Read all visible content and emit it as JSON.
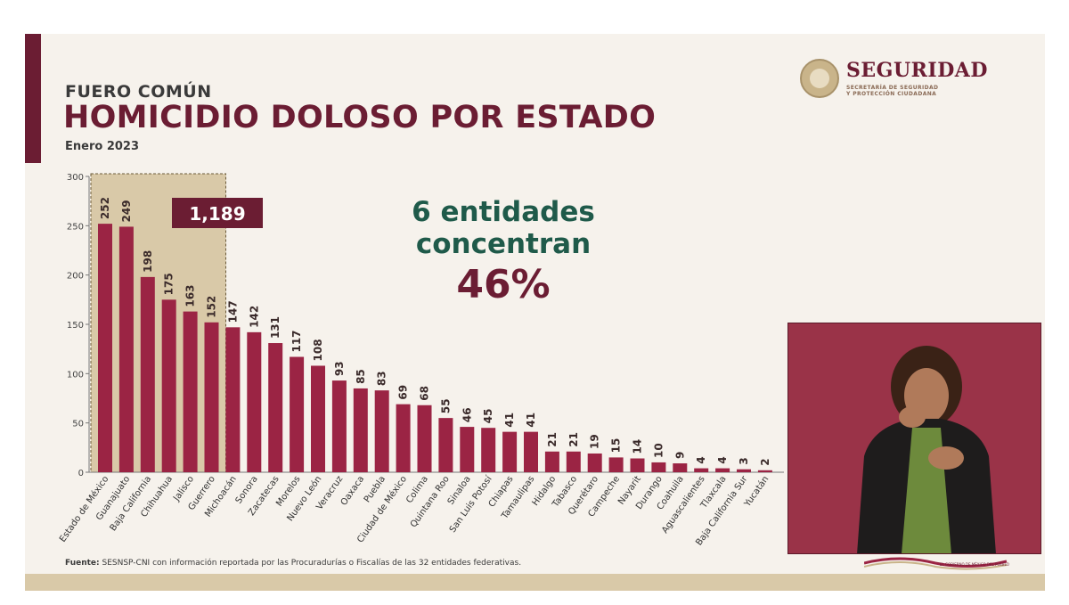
{
  "header": {
    "kicker": "FUERO COMÚN",
    "title": "HOMICIDIO DOLOSO POR ESTADO",
    "date": "Enero 2023"
  },
  "logo": {
    "word": "SEGURIDAD",
    "sub_line1": "SECRETARÍA DE SEGURIDAD",
    "sub_line2": "Y PROTECCIÓN CIUDADANA"
  },
  "message": {
    "line1": "6 entidades",
    "line2": "concentran",
    "percent": "46%"
  },
  "highlight": {
    "total": "1,189",
    "count": 6
  },
  "source": {
    "label": "Fuente:",
    "text": "SESNSP-CNI con información reportada por las Procuradurías o Fiscalías de las 32 entidades federativas."
  },
  "inset_footer": "EL GOBIERNO DE MÉXICO DEL PUEBLO",
  "colors": {
    "bar": "#9b2444",
    "bar_highlight": "#9b2444",
    "highlight_fill": "#d9c9a8",
    "accent": "#6b1d33",
    "message_green": "#1f5a4a"
  },
  "chart_data": {
    "type": "bar",
    "categories": [
      "Estado de México",
      "Guanajuato",
      "Baja California",
      "Chihuahua",
      "Jalisco",
      "Guerrero",
      "Michoacán",
      "Sonora",
      "Zacatecas",
      "Morelos",
      "Nuevo León",
      "Veracruz",
      "Oaxaca",
      "Puebla",
      "Ciudad de México",
      "Colima",
      "Quintana Roo",
      "Sinaloa",
      "San Luis Potosí",
      "Chiapas",
      "Tamaulipas",
      "Hidalgo",
      "Tabasco",
      "Querétaro",
      "Campeche",
      "Nayarit",
      "Durango",
      "Coahuila",
      "Aguascalientes",
      "Tlaxcala",
      "Baja California Sur",
      "Yucatán"
    ],
    "values": [
      252,
      249,
      198,
      175,
      163,
      152,
      147,
      142,
      131,
      117,
      108,
      93,
      85,
      83,
      69,
      68,
      55,
      46,
      45,
      41,
      41,
      21,
      21,
      19,
      15,
      14,
      10,
      9,
      4,
      4,
      3,
      2
    ],
    "title": "HOMICIDIO DOLOSO POR ESTADO",
    "ylim": [
      0,
      300
    ],
    "yticks": [
      0,
      50,
      100,
      150,
      200,
      250,
      300
    ],
    "grid": false,
    "legend": "none"
  }
}
